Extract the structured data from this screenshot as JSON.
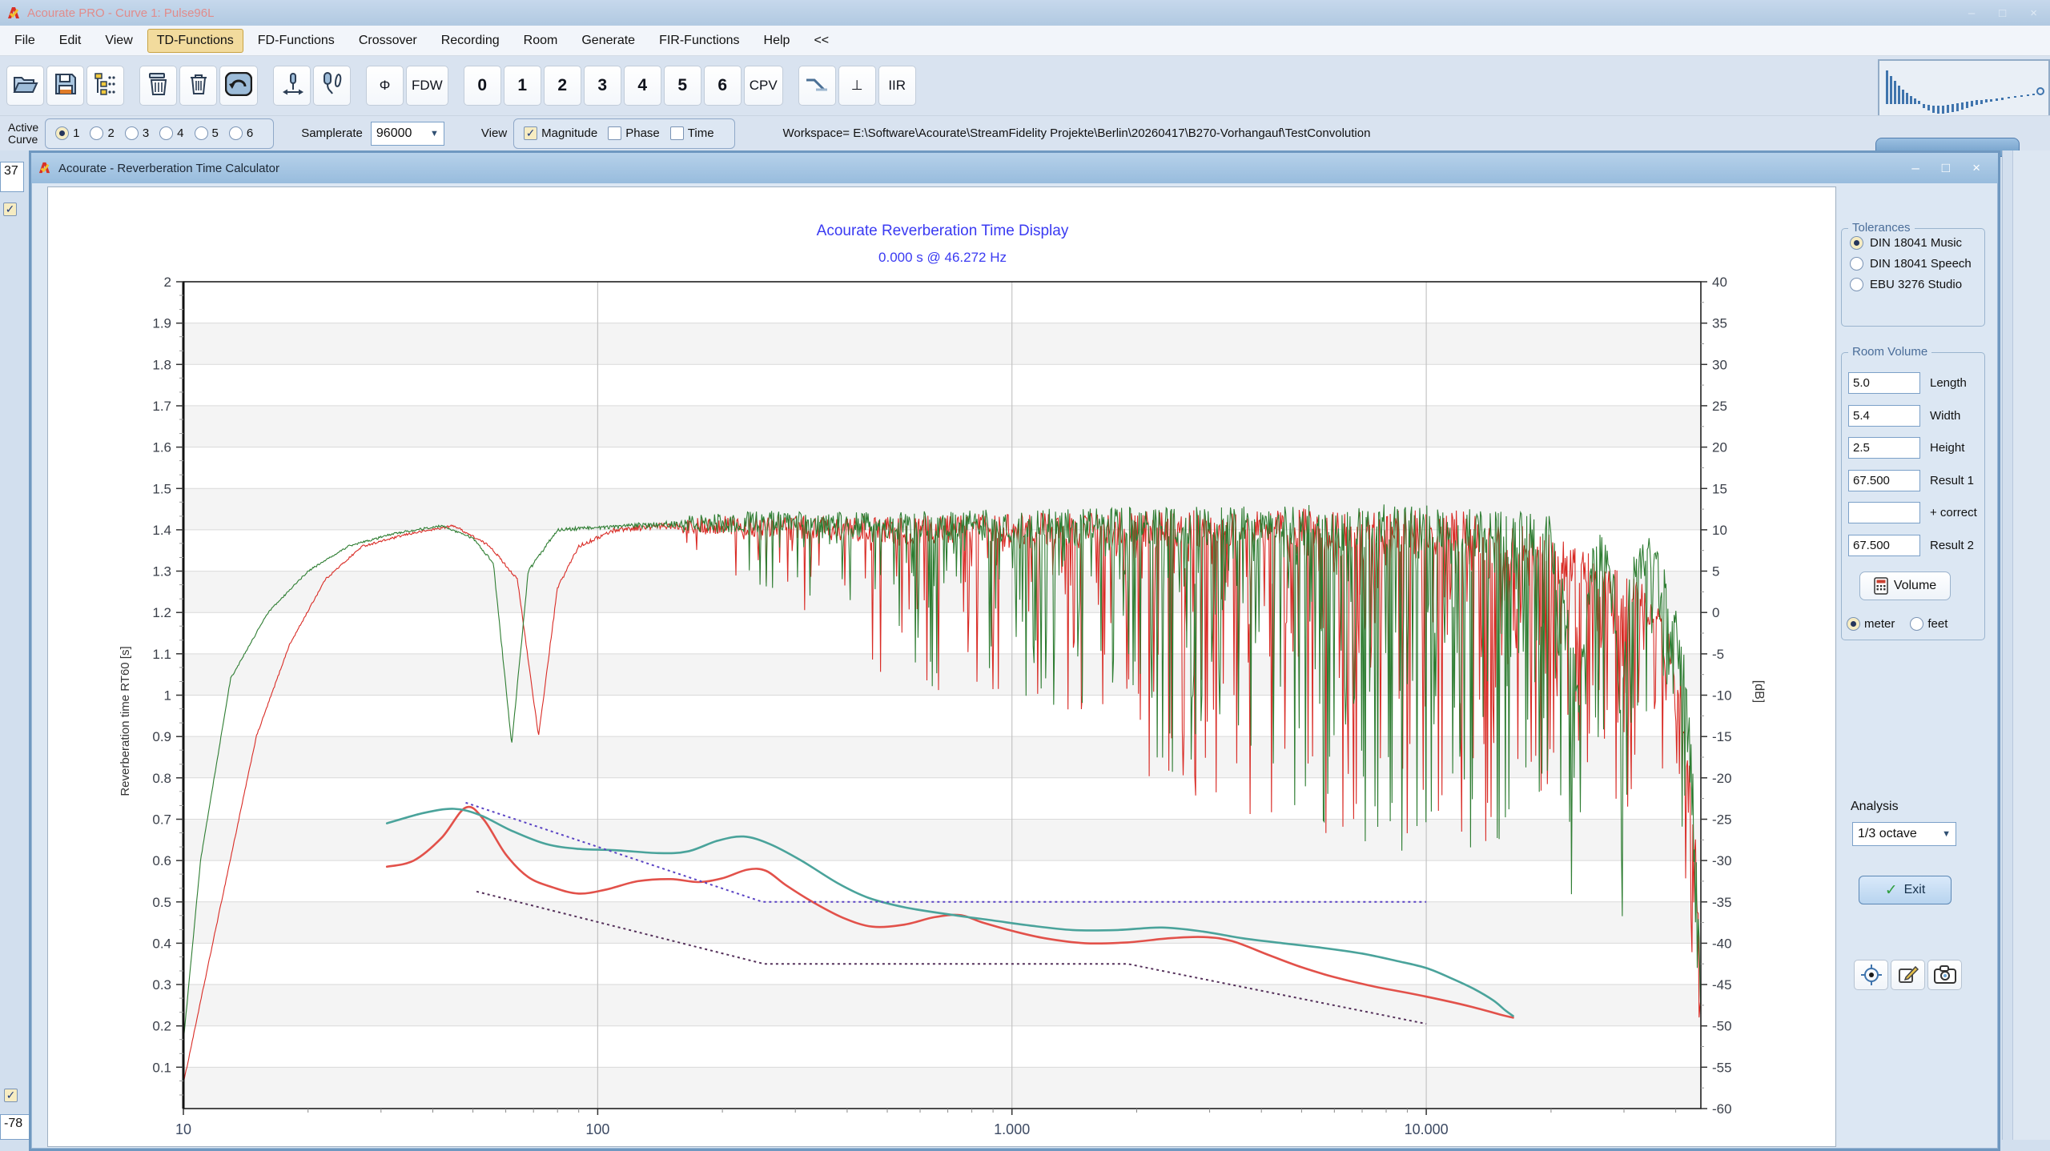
{
  "window": {
    "title": "Acourate PRO - Curve 1: Pulse96L",
    "controls": [
      "–",
      "□",
      "×"
    ]
  },
  "menu": {
    "items": [
      "File",
      "Edit",
      "View",
      "TD-Functions",
      "FD-Functions",
      "Crossover",
      "Recording",
      "Room",
      "Generate",
      "FIR-Functions",
      "Help",
      "<<"
    ],
    "active": "TD-Functions"
  },
  "toolbar": {
    "buttons": [
      {
        "name": "open-button",
        "icon": "folder-open-icon"
      },
      {
        "name": "save-button",
        "icon": "save-icon"
      },
      {
        "name": "curve-tree-button",
        "icon": "tree-icon"
      },
      {
        "gap": true
      },
      {
        "name": "delete-archive-button",
        "icon": "trash-lid-icon"
      },
      {
        "name": "delete-button",
        "icon": "trash-icon"
      },
      {
        "name": "undo-button",
        "icon": "undo-icon"
      },
      {
        "gap": true
      },
      {
        "name": "mic-position-button",
        "icon": "mic-arrows-icon"
      },
      {
        "name": "mic-cable-button",
        "icon": "mic-cable-icon"
      },
      {
        "gap": true
      },
      {
        "name": "phi-button",
        "label": "Φ"
      },
      {
        "name": "fdw-button",
        "label": "FDW"
      },
      {
        "gap": true
      },
      {
        "name": "curve-0-button",
        "label": "0",
        "num": true
      },
      {
        "name": "curve-1-button",
        "label": "1",
        "num": true
      },
      {
        "name": "curve-2-button",
        "label": "2",
        "num": true
      },
      {
        "name": "curve-3-button",
        "label": "3",
        "num": true
      },
      {
        "name": "curve-4-button",
        "label": "4",
        "num": true
      },
      {
        "name": "curve-5-button",
        "label": "5",
        "num": true
      },
      {
        "name": "curve-6-button",
        "label": "6",
        "num": true
      },
      {
        "name": "cpv-button",
        "label": "CPV"
      },
      {
        "gap": true
      },
      {
        "name": "curve-marker-button",
        "icon": "curve-marker-icon"
      },
      {
        "name": "perpendicular-button",
        "label": "⊥"
      },
      {
        "name": "iir-button",
        "label": "IIR"
      }
    ]
  },
  "controls_row": {
    "active_curve_label_1": "Active",
    "active_curve_label_2": "Curve",
    "curves": [
      "1",
      "2",
      "3",
      "4",
      "5",
      "6"
    ],
    "selected_curve": "1",
    "samplerate_label": "Samplerate",
    "samplerate_value": "96000",
    "view_label": "View",
    "view_options": [
      {
        "label": "Magnitude",
        "checked": true
      },
      {
        "label": "Phase",
        "checked": false
      },
      {
        "label": "Time",
        "checked": false
      }
    ],
    "workspace_text": "Workspace=  E:\\Software\\Acourate\\StreamFidelity Projekte\\Berlin\\20260417\\B270-Vorhangauf\\TestConvolution"
  },
  "background": {
    "left_top_value": "37",
    "left_bottom_value": "-78"
  },
  "dialog": {
    "title": "Acourate - Reverberation Time Calculator",
    "controls": [
      "–",
      "□",
      "×"
    ]
  },
  "side_panel": {
    "tolerances": {
      "legend": "Tolerances",
      "options": [
        {
          "label": "DIN 18041 Music",
          "selected": true
        },
        {
          "label": "DIN 18041 Speech",
          "selected": false
        },
        {
          "label": "EBU 3276 Studio",
          "selected": false
        }
      ]
    },
    "room_volume": {
      "legend": "Room Volume",
      "fields": [
        {
          "value": "5.0",
          "label": "Length"
        },
        {
          "value": "5.4",
          "label": "Width"
        },
        {
          "value": "2.5",
          "label": "Height"
        },
        {
          "value": "67.500",
          "label": "Result 1"
        },
        {
          "value": "",
          "label": "+ correct"
        },
        {
          "value": "67.500",
          "label": "Result 2"
        }
      ],
      "volume_button": "Volume",
      "units": [
        {
          "label": "meter",
          "selected": true
        },
        {
          "label": "feet",
          "selected": false
        }
      ]
    },
    "analysis_label": "Analysis",
    "analysis_value": "1/3 octave",
    "exit_label": "Exit"
  },
  "colors": {
    "title_blue": "#3a3af2",
    "magnitude_left": "#d92b25",
    "magnitude_right": "#2e7d32",
    "rt60_left": "#e2514a",
    "rt60_right": "#4aa39b",
    "tolerance_upper": "#5a43c4",
    "tolerance_lower": "#54305a"
  },
  "chart_data": {
    "type": "line",
    "title": "Acourate Reverberation Time Display",
    "subtitle": "0.000 s @ 46.272 Hz",
    "x_axis": {
      "scale": "log",
      "min": 10,
      "max": 46000,
      "tick_labels": [
        "10",
        "100",
        "1.000",
        "10.000"
      ],
      "tick_values": [
        10,
        100,
        1000,
        10000
      ]
    },
    "y_left": {
      "label": "Reverberation time RT60 [s]",
      "min": 0,
      "max": 2,
      "tick_labels": [
        "2",
        "1.9",
        "1.8",
        "1.7",
        "1.6",
        "1.5",
        "1.4",
        "1.3",
        "1.2",
        "1.1",
        "1",
        "0.9",
        "0.8",
        "0.7",
        "0.6",
        "0.5",
        "0.4",
        "0.3",
        "0.2",
        "0.1"
      ]
    },
    "y_right": {
      "label": "[dB]",
      "min": -60,
      "max": 40,
      "tick_labels": [
        "40",
        "35",
        "30",
        "25",
        "20",
        "15",
        "10",
        "5",
        "0",
        "-5",
        "-10",
        "-15",
        "-20",
        "-25",
        "-30",
        "-35",
        "-40",
        "-45",
        "-50",
        "-55",
        "-60"
      ]
    },
    "grid": {
      "stripe_colors": [
        "#ffffff",
        "#f4f4f4"
      ],
      "h_line_color": "#d9d9d9",
      "v_line_color": "#c4c4c4",
      "v_decades": [
        100,
        1000,
        10000
      ]
    },
    "series": [
      {
        "name": "magnitude-left",
        "axis": "right",
        "color": "#d92b25",
        "width": 1.1,
        "style": "noisy",
        "seed": 1234,
        "base_db": [
          [
            10,
            -57
          ],
          [
            12,
            -38
          ],
          [
            15,
            -15
          ],
          [
            18,
            -4
          ],
          [
            22,
            4
          ],
          [
            27,
            8
          ],
          [
            35,
            9.5
          ],
          [
            45,
            10.5
          ],
          [
            55,
            8
          ],
          [
            64,
            4
          ],
          [
            72,
            -15
          ],
          [
            80,
            3
          ],
          [
            90,
            8
          ],
          [
            110,
            10
          ],
          [
            150,
            10.5
          ],
          [
            250,
            10.5
          ],
          [
            500,
            10
          ],
          [
            1000,
            10
          ],
          [
            2000,
            10
          ],
          [
            4000,
            10
          ],
          [
            8000,
            10
          ],
          [
            12000,
            9.5
          ],
          [
            16000,
            8.5
          ],
          [
            20000,
            7
          ],
          [
            24000,
            5
          ],
          [
            28000,
            3
          ],
          [
            32000,
            1.5
          ],
          [
            35000,
            0
          ],
          [
            38000,
            -4
          ],
          [
            41000,
            -10
          ],
          [
            43000,
            -16
          ],
          [
            45000,
            -32
          ],
          [
            46000,
            -48
          ]
        ]
      },
      {
        "name": "magnitude-right",
        "axis": "right",
        "color": "#2e7d32",
        "width": 1.1,
        "style": "noisy",
        "seed": 9271,
        "base_db": [
          [
            10,
            -52
          ],
          [
            11,
            -30
          ],
          [
            13,
            -8
          ],
          [
            16,
            0
          ],
          [
            20,
            5
          ],
          [
            25,
            8
          ],
          [
            32,
            9.5
          ],
          [
            42,
            10.5
          ],
          [
            50,
            9
          ],
          [
            56,
            6
          ],
          [
            62,
            -16
          ],
          [
            68,
            5
          ],
          [
            80,
            10
          ],
          [
            120,
            10.5
          ],
          [
            250,
            11
          ],
          [
            500,
            10.5
          ],
          [
            1000,
            10.5
          ],
          [
            2000,
            10.5
          ],
          [
            4000,
            10.5
          ],
          [
            8000,
            10.5
          ],
          [
            12000,
            10
          ],
          [
            16000,
            9.5
          ],
          [
            20000,
            9
          ],
          [
            23500,
            -10
          ],
          [
            25000,
            6
          ],
          [
            28000,
            8
          ],
          [
            29500,
            -15
          ],
          [
            31000,
            4
          ],
          [
            33000,
            8
          ],
          [
            35000,
            6
          ],
          [
            38000,
            2
          ],
          [
            40000,
            -2
          ],
          [
            42000,
            -8
          ],
          [
            44000,
            -20
          ],
          [
            45500,
            -36
          ],
          [
            46000,
            -47
          ]
        ]
      },
      {
        "name": "rt60-left",
        "axis": "left",
        "color": "#e2514a",
        "width": 2.6,
        "style": "smooth",
        "points": [
          [
            31,
            0.585
          ],
          [
            36,
            0.6
          ],
          [
            42,
            0.655
          ],
          [
            48,
            0.728
          ],
          [
            53,
            0.7
          ],
          [
            60,
            0.615
          ],
          [
            68,
            0.56
          ],
          [
            78,
            0.535
          ],
          [
            90,
            0.52
          ],
          [
            105,
            0.53
          ],
          [
            125,
            0.55
          ],
          [
            150,
            0.555
          ],
          [
            175,
            0.548
          ],
          [
            200,
            0.557
          ],
          [
            230,
            0.578
          ],
          [
            255,
            0.575
          ],
          [
            285,
            0.54
          ],
          [
            330,
            0.5
          ],
          [
            390,
            0.462
          ],
          [
            460,
            0.44
          ],
          [
            550,
            0.445
          ],
          [
            650,
            0.463
          ],
          [
            750,
            0.468
          ],
          [
            850,
            0.45
          ],
          [
            1000,
            0.43
          ],
          [
            1200,
            0.412
          ],
          [
            1500,
            0.4
          ],
          [
            1900,
            0.402
          ],
          [
            2400,
            0.412
          ],
          [
            2900,
            0.415
          ],
          [
            3400,
            0.405
          ],
          [
            4200,
            0.37
          ],
          [
            5000,
            0.342
          ],
          [
            6000,
            0.318
          ],
          [
            7500,
            0.295
          ],
          [
            9000,
            0.28
          ],
          [
            11000,
            0.262
          ],
          [
            13000,
            0.245
          ],
          [
            15000,
            0.228
          ],
          [
            16200,
            0.22
          ]
        ]
      },
      {
        "name": "rt60-right",
        "axis": "left",
        "color": "#4aa39b",
        "width": 2.6,
        "style": "smooth",
        "points": [
          [
            31,
            0.69
          ],
          [
            38,
            0.715
          ],
          [
            45,
            0.725
          ],
          [
            52,
            0.71
          ],
          [
            62,
            0.672
          ],
          [
            75,
            0.64
          ],
          [
            90,
            0.628
          ],
          [
            110,
            0.625
          ],
          [
            140,
            0.618
          ],
          [
            165,
            0.622
          ],
          [
            195,
            0.648
          ],
          [
            225,
            0.658
          ],
          [
            260,
            0.64
          ],
          [
            310,
            0.6
          ],
          [
            380,
            0.545
          ],
          [
            450,
            0.51
          ],
          [
            550,
            0.487
          ],
          [
            700,
            0.47
          ],
          [
            900,
            0.455
          ],
          [
            1100,
            0.443
          ],
          [
            1400,
            0.432
          ],
          [
            1800,
            0.432
          ],
          [
            2300,
            0.438
          ],
          [
            2900,
            0.428
          ],
          [
            3600,
            0.412
          ],
          [
            4500,
            0.4
          ],
          [
            5500,
            0.39
          ],
          [
            7000,
            0.375
          ],
          [
            8500,
            0.357
          ],
          [
            10000,
            0.34
          ],
          [
            11500,
            0.315
          ],
          [
            13000,
            0.29
          ],
          [
            14500,
            0.262
          ],
          [
            15500,
            0.238
          ],
          [
            16200,
            0.224
          ]
        ]
      },
      {
        "name": "tolerance-upper",
        "axis": "left",
        "color": "#5a43c4",
        "width": 2,
        "style": "dashed",
        "points": [
          [
            48,
            0.74
          ],
          [
            250,
            0.5
          ],
          [
            10000,
            0.5
          ]
        ]
      },
      {
        "name": "tolerance-lower",
        "axis": "left",
        "color": "#54305a",
        "width": 2,
        "style": "dashed",
        "points": [
          [
            51,
            0.525
          ],
          [
            252,
            0.35
          ],
          [
            1900,
            0.35
          ],
          [
            10000,
            0.205
          ]
        ]
      }
    ],
    "noise": {
      "samples": 1700,
      "start_hz": 160,
      "prob": [
        [
          160,
          0.05
        ],
        [
          300,
          0.16
        ],
        [
          1000,
          0.28
        ],
        [
          3000,
          0.38
        ],
        [
          10000,
          0.44
        ],
        [
          46000,
          0.5
        ]
      ],
      "jitter_db": [
        [
          10,
          0.2
        ],
        [
          60,
          0.35
        ],
        [
          100,
          0.5
        ],
        [
          200,
          1.2
        ],
        [
          1000,
          2.0
        ],
        [
          10000,
          2.8
        ],
        [
          46000,
          3.0
        ]
      ],
      "depth_db": [
        [
          160,
          3
        ],
        [
          300,
          10
        ],
        [
          600,
          20
        ],
        [
          1200,
          22
        ],
        [
          2500,
          30
        ],
        [
          5000,
          36
        ],
        [
          9000,
          42
        ],
        [
          15000,
          38
        ],
        [
          22000,
          32
        ],
        [
          32000,
          26
        ],
        [
          42000,
          22
        ],
        [
          46000,
          14
        ]
      ]
    }
  }
}
